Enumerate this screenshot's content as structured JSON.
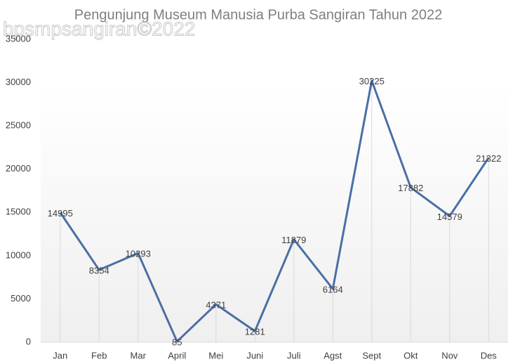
{
  "chart_data": {
    "type": "line",
    "title": "Pengunjung Museum Manusia Purba Sangiran Tahun 2022",
    "watermark": "bpsmpsangiran©2022",
    "categories": [
      "Jan",
      "Feb",
      "Mar",
      "April",
      "Mei",
      "Juni",
      "Juli",
      "Agst",
      "Sept",
      "Okt",
      "Nov",
      "Des"
    ],
    "series": [
      {
        "name": "Pengunjung",
        "color": "#4a6fa5",
        "values": [
          14995,
          8354,
          10293,
          85,
          4371,
          1281,
          11879,
          6164,
          30225,
          17882,
          14579,
          21322
        ]
      }
    ],
    "ylim": [
      0,
      35000
    ],
    "yticks": [
      0,
      5000,
      10000,
      15000,
      20000,
      25000,
      30000,
      35000
    ],
    "drop_lines": true
  }
}
